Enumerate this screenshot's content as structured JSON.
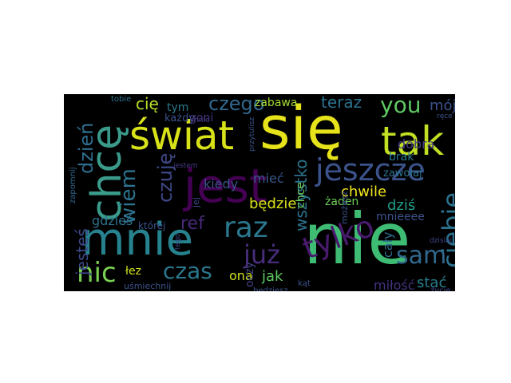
{
  "palette": {
    "background": "#000000",
    "page": "#ffffff",
    "yellow": "#e7e31a",
    "lightgreen": "#8fd744",
    "green": "#35b779",
    "teal": "#21918c",
    "blue": "#31688e",
    "indigo": "#443a83",
    "purple": "#440154"
  },
  "words": [
    {
      "text": "się",
      "color": "#e7e31a"
    },
    {
      "text": "nie",
      "color": "#3fbc73"
    },
    {
      "text": "mnie",
      "color": "#26828e"
    },
    {
      "text": "jest",
      "color": "#440154"
    },
    {
      "text": "świat",
      "color": "#d8e219"
    },
    {
      "text": "chcę",
      "color": "#3b9b8b"
    },
    {
      "text": "tak",
      "color": "#c2df23"
    },
    {
      "text": "jeszcze",
      "color": "#3b528b"
    },
    {
      "text": "raz",
      "color": "#2a788e"
    },
    {
      "text": "już",
      "color": "#472d7b"
    },
    {
      "text": "tylko",
      "color": "#481a6c"
    },
    {
      "text": "sam",
      "color": "#31688e"
    },
    {
      "text": "ciebie",
      "color": "#2c728e"
    },
    {
      "text": "nic",
      "color": "#7ad151"
    },
    {
      "text": "czas",
      "color": "#2a788e"
    },
    {
      "text": "wiem",
      "color": "#2c728e"
    },
    {
      "text": "czuję",
      "color": "#3e4989"
    },
    {
      "text": "dzień",
      "color": "#2e6e8e"
    },
    {
      "text": "you",
      "color": "#5ec962"
    },
    {
      "text": "czego",
      "color": "#31688e"
    },
    {
      "text": "cię",
      "color": "#b5de2b"
    },
    {
      "text": "zabawa",
      "color": "#a5db36"
    },
    {
      "text": "teraz",
      "color": "#2c728e"
    },
    {
      "text": "mój",
      "color": "#3b528b"
    },
    {
      "text": "wszystko",
      "color": "#2c728e"
    },
    {
      "text": "będzie",
      "color": "#d8e219"
    },
    {
      "text": "dziś",
      "color": "#1f9e89"
    },
    {
      "text": "mieć",
      "color": "#38598c"
    },
    {
      "text": "kiedy",
      "color": "#3b528b"
    },
    {
      "text": "chwile",
      "color": "#f1e51d"
    },
    {
      "text": "żaden",
      "color": "#6ece58"
    },
    {
      "text": "ref",
      "color": "#482878"
    },
    {
      "text": "jesteś",
      "color": "#3e4989"
    },
    {
      "text": "gdzieś",
      "color": "#2c728e"
    },
    {
      "text": "jak",
      "color": "#5ec962"
    },
    {
      "text": "ona",
      "color": "#d0e11c"
    },
    {
      "text": "łez",
      "color": "#d0e11c"
    },
    {
      "text": "stać",
      "color": "#287d8e"
    },
    {
      "text": "miłość",
      "color": "#46327e"
    },
    {
      "text": "cały",
      "color": "#2e6e8e"
    },
    {
      "text": "dobra",
      "color": "#433e85"
    },
    {
      "text": "brak",
      "color": "#2a788e"
    },
    {
      "text": "zawołaj",
      "color": "#2c728e"
    },
    {
      "text": "chce",
      "color": "#6ece58"
    },
    {
      "text": "mnieeee",
      "color": "#3b528b"
    },
    {
      "text": "oczy",
      "color": "#414487"
    },
    {
      "text": "goni",
      "color": "#46327e"
    },
    {
      "text": "tym",
      "color": "#2a788e"
    },
    {
      "text": "każdy",
      "color": "#3b528b"
    },
    {
      "text": "której",
      "color": "#3b528b"
    },
    {
      "text": "uśmiechnij",
      "color": "#3b528b"
    },
    {
      "text": "możesz",
      "color": "#3b528b"
    },
    {
      "text": "kąt",
      "color": "#3b528b"
    },
    {
      "text": "życie",
      "color": "#3e4989"
    },
    {
      "text": "tobie",
      "color": "#2c728e"
    },
    {
      "text": "zapomnij",
      "color": "#31688e"
    },
    {
      "text": "jej",
      "color": "#3e4989"
    },
    {
      "text": "będziesz",
      "color": "#3b528b"
    },
    {
      "text": "jestem",
      "color": "#443a83"
    },
    {
      "text": "mnie",
      "color": "#443a83"
    },
    {
      "text": "przytulisz",
      "color": "#3b528b"
    },
    {
      "text": "ręce",
      "color": "#3b528b"
    },
    {
      "text": "dzisiaj",
      "color": "#3e4989"
    },
    {
      "text": "tego",
      "color": "#3e4989"
    }
  ]
}
